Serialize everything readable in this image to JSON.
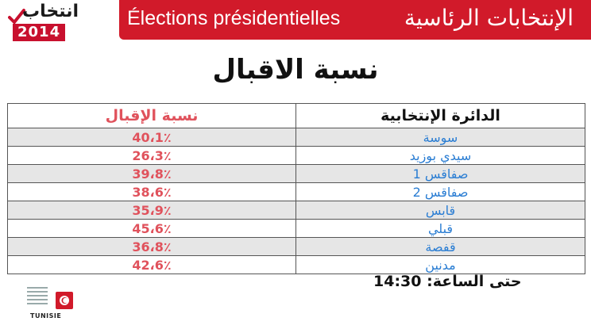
{
  "header": {
    "logo_word": "انتخاب",
    "logo_year": "2014",
    "title_fr": "Élections présidentielles",
    "title_ar": "الإنتخابات الرئاسية"
  },
  "page_title": "نسبة الاقبال",
  "table": {
    "col_district": "الدائرة الإنتخابية",
    "col_rate": "نسبة الإقبال",
    "rows": [
      {
        "district": "سوسة",
        "rate": "40،1٪"
      },
      {
        "district": "سيدي بوزيد",
        "rate": "26،3٪"
      },
      {
        "district": "صفاقس 1",
        "rate": "39،8٪"
      },
      {
        "district": "صفاقس 2",
        "rate": "38،6٪"
      },
      {
        "district": "قابس",
        "rate": "35،9٪"
      },
      {
        "district": "قبلي",
        "rate": "45،6٪"
      },
      {
        "district": "قفصة",
        "rate": "36،8٪"
      },
      {
        "district": "مدنين",
        "rate": "42،6٪"
      }
    ]
  },
  "footer": {
    "time_label": "حتى الساعة:",
    "time_value": "14:30",
    "org_label": "TUNISIE"
  },
  "colors": {
    "banner": "#d11a2a",
    "rate_text": "#e0525c",
    "district_text": "#2a7dd3"
  }
}
